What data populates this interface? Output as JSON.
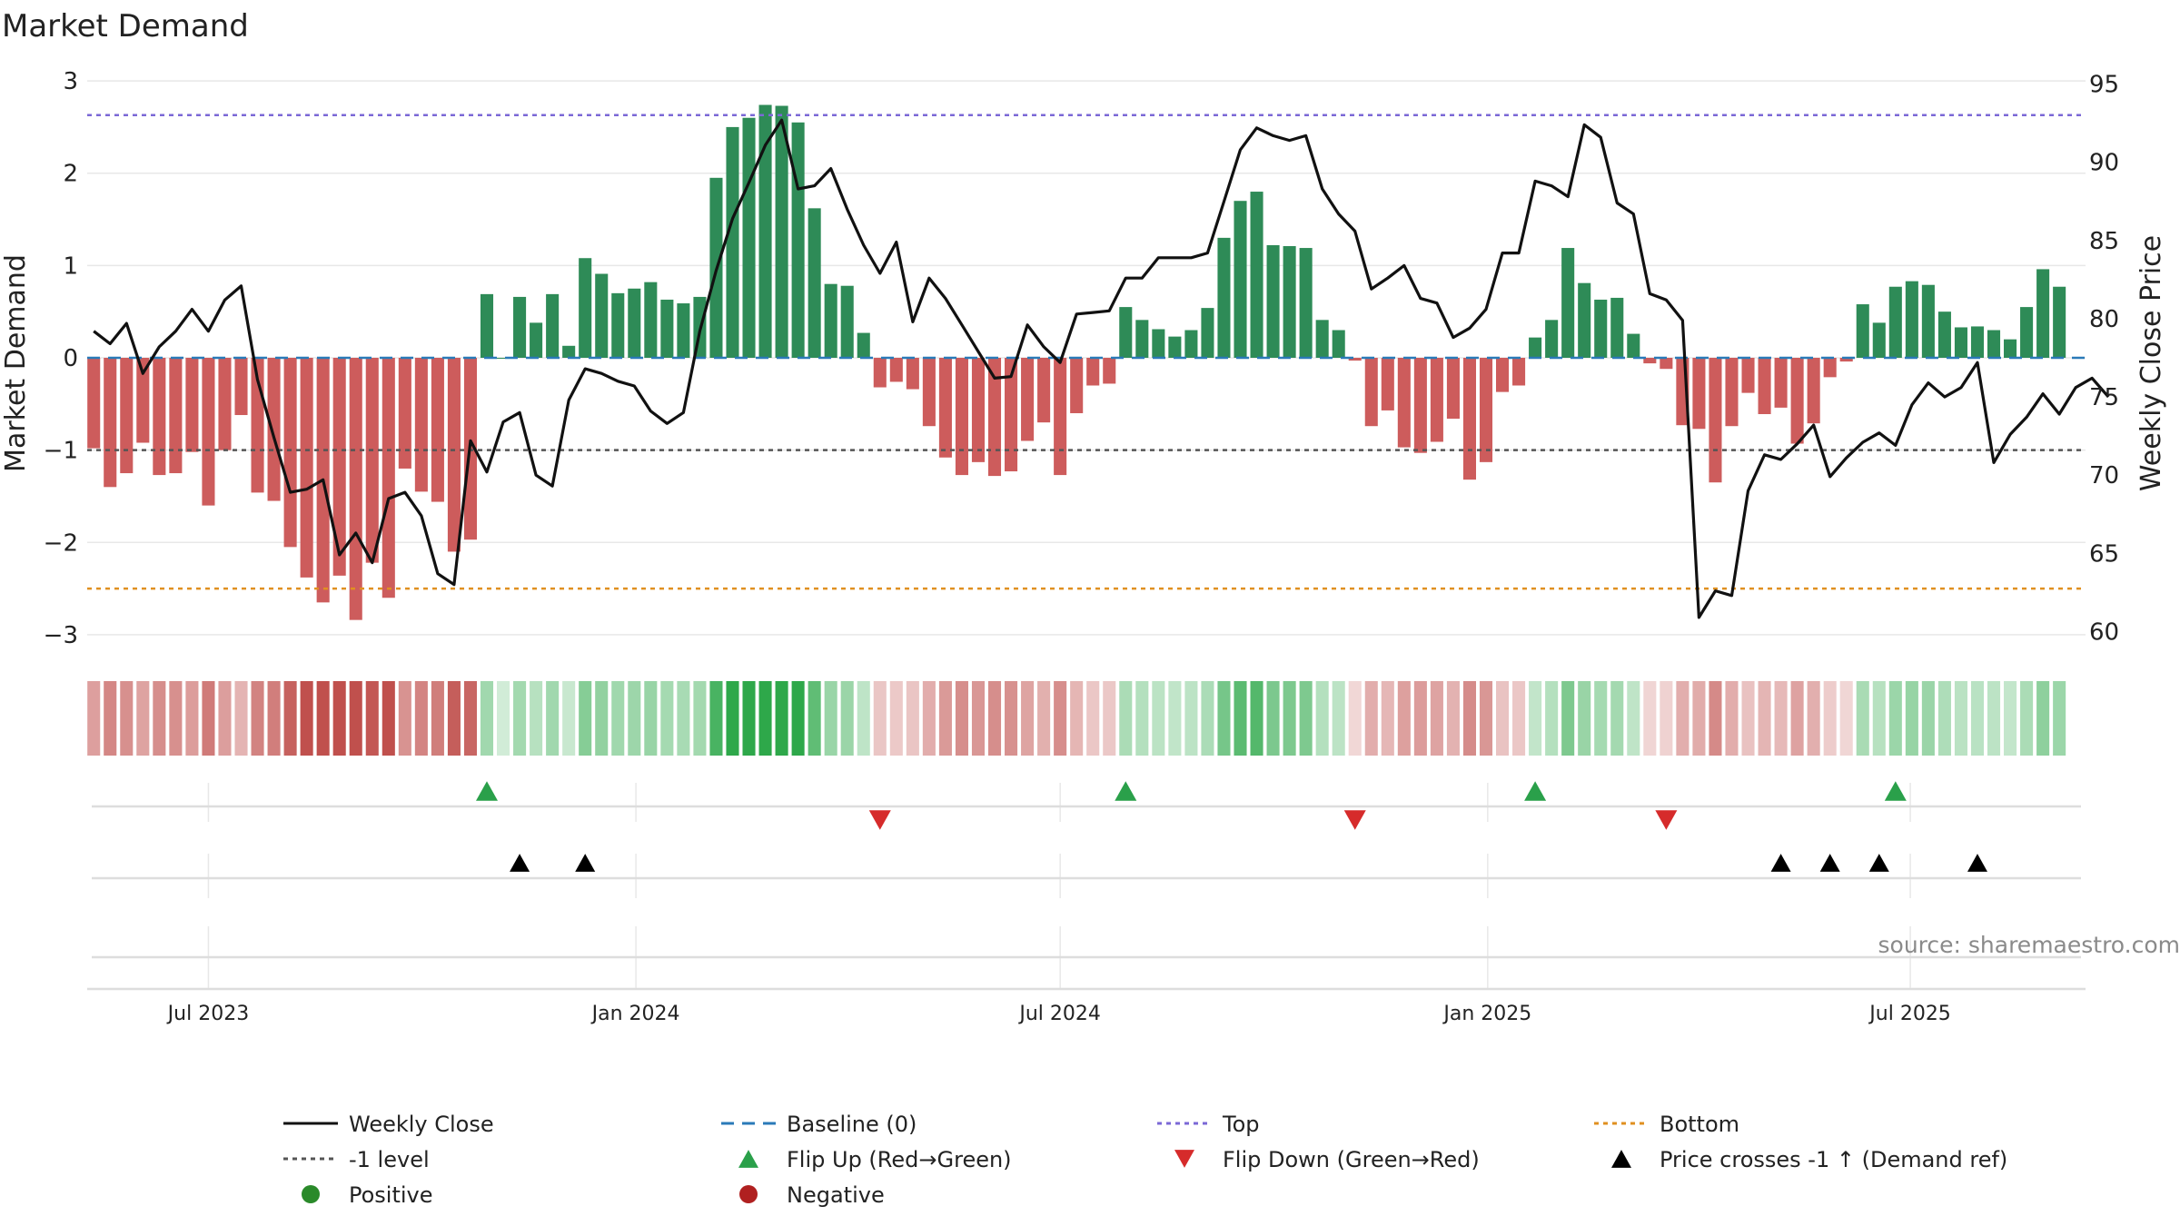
{
  "chart_data": {
    "type": "bar",
    "title": "Market Demand",
    "ylabel": "Market Demand",
    "y2label": "Weekly Close Price",
    "ylim": [
      -3.05,
      3.05
    ],
    "y2lim": [
      59.5,
      95.5
    ],
    "yticks": [
      3,
      2,
      1,
      0,
      -1,
      -2,
      -3
    ],
    "ytick_labels": [
      "3",
      "2",
      "1",
      "0",
      "−1",
      "−2",
      "−3"
    ],
    "y2ticks": [
      95,
      90,
      85,
      80,
      75,
      70,
      65,
      60
    ],
    "y2tick_labels": [
      "95",
      "90",
      "85",
      "80",
      "75",
      "70",
      "65",
      "60"
    ],
    "x_start_week": -7.4,
    "weeks_total": 122,
    "date_ticks": [
      {
        "label": "Jul 2023",
        "week": 0
      },
      {
        "label": "Jan 2024",
        "week": 26.1
      },
      {
        "label": "Jul 2024",
        "week": 52
      },
      {
        "label": "Jan 2025",
        "week": 78.1
      },
      {
        "label": "Jul 2025",
        "week": 103.9
      }
    ],
    "reference_lines": {
      "top": 2.63,
      "bottom": -2.5,
      "minus_one": -1
    },
    "series": [
      {
        "name": "Market Demand",
        "values": [
          -0.98,
          -1.4,
          -1.25,
          -0.92,
          -1.27,
          -1.25,
          -1.02,
          -1.6,
          -1.0,
          -0.62,
          -1.46,
          -1.55,
          -2.05,
          -2.38,
          -2.65,
          -2.36,
          -2.84,
          -2.22,
          -2.6,
          -1.2,
          -1.45,
          -1.56,
          -2.1,
          -1.97,
          0.69,
          0.0,
          0.66,
          0.38,
          0.69,
          0.13,
          1.08,
          0.91,
          0.7,
          0.75,
          0.82,
          0.63,
          0.59,
          0.66,
          1.95,
          2.5,
          2.6,
          2.74,
          2.73,
          2.55,
          1.62,
          0.8,
          0.78,
          0.27,
          -0.32,
          -0.26,
          -0.34,
          -0.74,
          -1.08,
          -1.27,
          -1.13,
          -1.28,
          -1.23,
          -0.9,
          -0.7,
          -1.27,
          -0.6,
          -0.3,
          -0.28,
          0.55,
          0.41,
          0.31,
          0.23,
          0.3,
          0.54,
          1.3,
          1.7,
          1.8,
          1.22,
          1.21,
          1.19,
          0.41,
          0.3,
          -0.03,
          -0.74,
          -0.57,
          -0.97,
          -1.03,
          -0.91,
          -0.66,
          -1.32,
          -1.13,
          -0.37,
          -0.3,
          0.22,
          0.41,
          1.19,
          0.81,
          0.63,
          0.65,
          0.26,
          -0.06,
          -0.12,
          -0.73,
          -0.77,
          -1.35,
          -0.74,
          -0.38,
          -0.61,
          -0.54,
          -0.93,
          -0.71,
          -0.21,
          -0.04,
          0.58,
          0.38,
          0.77,
          0.83,
          0.79,
          0.5,
          0.33,
          0.34,
          0.3,
          0.2,
          0.55,
          0.96,
          0.77
        ]
      },
      {
        "name": "Weekly Close",
        "values": [
          [
            -7,
            79.2
          ],
          [
            -6,
            78.4
          ],
          [
            -5,
            79.7
          ],
          [
            -4,
            76.5
          ],
          [
            -3,
            78.2
          ],
          [
            -2,
            79.2
          ],
          [
            -1,
            80.6
          ],
          [
            0,
            79.2
          ],
          [
            1,
            81.2
          ],
          [
            2,
            82.1
          ],
          [
            3,
            76.1
          ],
          [
            4,
            72.4
          ],
          [
            5,
            68.9
          ],
          [
            6,
            69.1
          ],
          [
            7,
            69.7
          ],
          [
            8,
            64.9
          ],
          [
            9,
            66.3
          ],
          [
            10,
            64.4
          ],
          [
            11,
            68.5
          ],
          [
            12,
            68.9
          ],
          [
            13,
            67.4
          ],
          [
            14,
            63.7
          ],
          [
            15,
            63.0
          ],
          [
            16,
            72.2
          ],
          [
            17,
            70.2
          ],
          [
            18,
            73.4
          ],
          [
            19,
            74.0
          ],
          [
            20,
            70.0
          ],
          [
            21,
            69.3
          ],
          [
            22,
            74.8
          ],
          [
            23,
            76.8
          ],
          [
            24,
            76.5
          ],
          [
            25,
            76.0
          ],
          [
            26,
            75.7
          ],
          [
            27,
            74.1
          ],
          [
            28,
            73.3
          ],
          [
            29,
            74.0
          ],
          [
            30,
            79.2
          ],
          [
            31,
            83.1
          ],
          [
            32,
            86.4
          ],
          [
            33,
            88.7
          ],
          [
            34,
            91.1
          ],
          [
            35,
            92.7
          ],
          [
            36,
            88.3
          ],
          [
            37,
            88.5
          ],
          [
            38,
            89.6
          ],
          [
            39,
            87.0
          ],
          [
            40,
            84.7
          ],
          [
            41,
            82.9
          ],
          [
            42,
            84.9
          ],
          [
            43,
            79.8
          ],
          [
            44,
            82.6
          ],
          [
            45,
            81.3
          ],
          [
            46,
            79.6
          ],
          [
            47,
            77.9
          ],
          [
            48,
            76.2
          ],
          [
            49,
            76.3
          ],
          [
            50,
            79.6
          ],
          [
            51,
            78.2
          ],
          [
            52,
            77.2
          ],
          [
            53,
            80.3
          ],
          [
            54,
            80.4
          ],
          [
            55,
            80.5
          ],
          [
            56,
            82.6
          ],
          [
            57,
            82.6
          ],
          [
            58,
            83.9
          ],
          [
            59,
            83.9
          ],
          [
            60,
            83.9
          ],
          [
            61,
            84.2
          ],
          [
            62,
            87.5
          ],
          [
            63,
            90.8
          ],
          [
            64,
            92.2
          ],
          [
            65,
            91.7
          ],
          [
            66,
            91.4
          ],
          [
            67,
            91.7
          ],
          [
            68,
            88.3
          ],
          [
            69,
            86.7
          ],
          [
            70,
            85.6
          ],
          [
            71,
            81.9
          ],
          [
            72,
            82.6
          ],
          [
            73,
            83.4
          ],
          [
            74,
            81.3
          ],
          [
            75,
            81.0
          ],
          [
            76,
            78.8
          ],
          [
            77,
            79.4
          ],
          [
            78,
            80.6
          ],
          [
            79,
            84.2
          ],
          [
            80,
            84.2
          ],
          [
            81,
            88.8
          ],
          [
            82,
            88.5
          ],
          [
            83,
            87.8
          ],
          [
            84,
            92.4
          ],
          [
            85,
            91.6
          ],
          [
            86,
            87.4
          ],
          [
            87,
            86.7
          ],
          [
            88,
            81.6
          ],
          [
            89,
            81.2
          ],
          [
            90,
            79.9
          ],
          [
            91,
            60.9
          ],
          [
            92,
            62.6
          ],
          [
            93,
            62.3
          ],
          [
            94,
            69.0
          ],
          [
            95,
            71.3
          ],
          [
            96,
            71.0
          ],
          [
            97,
            72.0
          ],
          [
            98,
            73.2
          ],
          [
            99,
            69.9
          ],
          [
            100,
            71.1
          ],
          [
            101,
            72.1
          ],
          [
            102,
            72.7
          ],
          [
            103,
            71.9
          ],
          [
            104,
            74.5
          ],
          [
            105,
            75.9
          ],
          [
            106,
            75.0
          ],
          [
            107,
            75.6
          ],
          [
            108,
            77.2
          ],
          [
            109,
            70.8
          ],
          [
            110,
            72.6
          ],
          [
            111,
            73.7
          ],
          [
            112,
            75.2
          ],
          [
            113,
            73.9
          ],
          [
            114,
            75.6
          ],
          [
            115,
            76.2
          ],
          [
            116,
            75.0
          ]
        ]
      }
    ],
    "flip_up_weeks": [
      17,
      56,
      81,
      103
    ],
    "flip_down_weeks": [
      41,
      70,
      89
    ],
    "price_cross_weeks": [
      19,
      23,
      96,
      99,
      102,
      108
    ],
    "legend": [
      {
        "label": "Weekly Close",
        "kind": "line",
        "color": "#111111",
        "dash": ""
      },
      {
        "label": "Baseline (0)",
        "kind": "line",
        "color": "#2a7ab8",
        "dash": "14,9"
      },
      {
        "label": "Top",
        "kind": "line",
        "color": "#7b68d6",
        "dash": "5,5"
      },
      {
        "label": "Bottom",
        "kind": "line",
        "color": "#e09020",
        "dash": "5,5"
      },
      {
        "label": "-1 level",
        "kind": "line",
        "color": "#555555",
        "dash": "5,5"
      },
      {
        "label": "Flip Up (Red→Green)",
        "kind": "tri-up",
        "color": "#2aa04a",
        "dash": ""
      },
      {
        "label": "Flip Down (Green→Red)",
        "kind": "tri-down",
        "color": "#d62b2b",
        "dash": ""
      },
      {
        "label": "Price crosses -1 ↑ (Demand ref)",
        "kind": "tri-up",
        "color": "#000000",
        "dash": ""
      },
      {
        "label": "Positive",
        "kind": "dot",
        "color": "#2a8a2a",
        "dash": ""
      },
      {
        "label": "Negative",
        "kind": "dot",
        "color": "#b02020",
        "dash": ""
      }
    ],
    "legend_placement": "bottom",
    "source": "source: sharemaestro.com"
  },
  "colors": {
    "positive_bar": "#2e8b57",
    "negative_bar": "#cd5c5c",
    "price_line": "#111111",
    "baseline": "#2a7ab8",
    "top": "#7b68d6",
    "bottom": "#e09020",
    "minus_one": "#555555",
    "heat_pos": "#2ea84a",
    "heat_neg": "#c0504d",
    "grid": "#e8e8e8"
  }
}
